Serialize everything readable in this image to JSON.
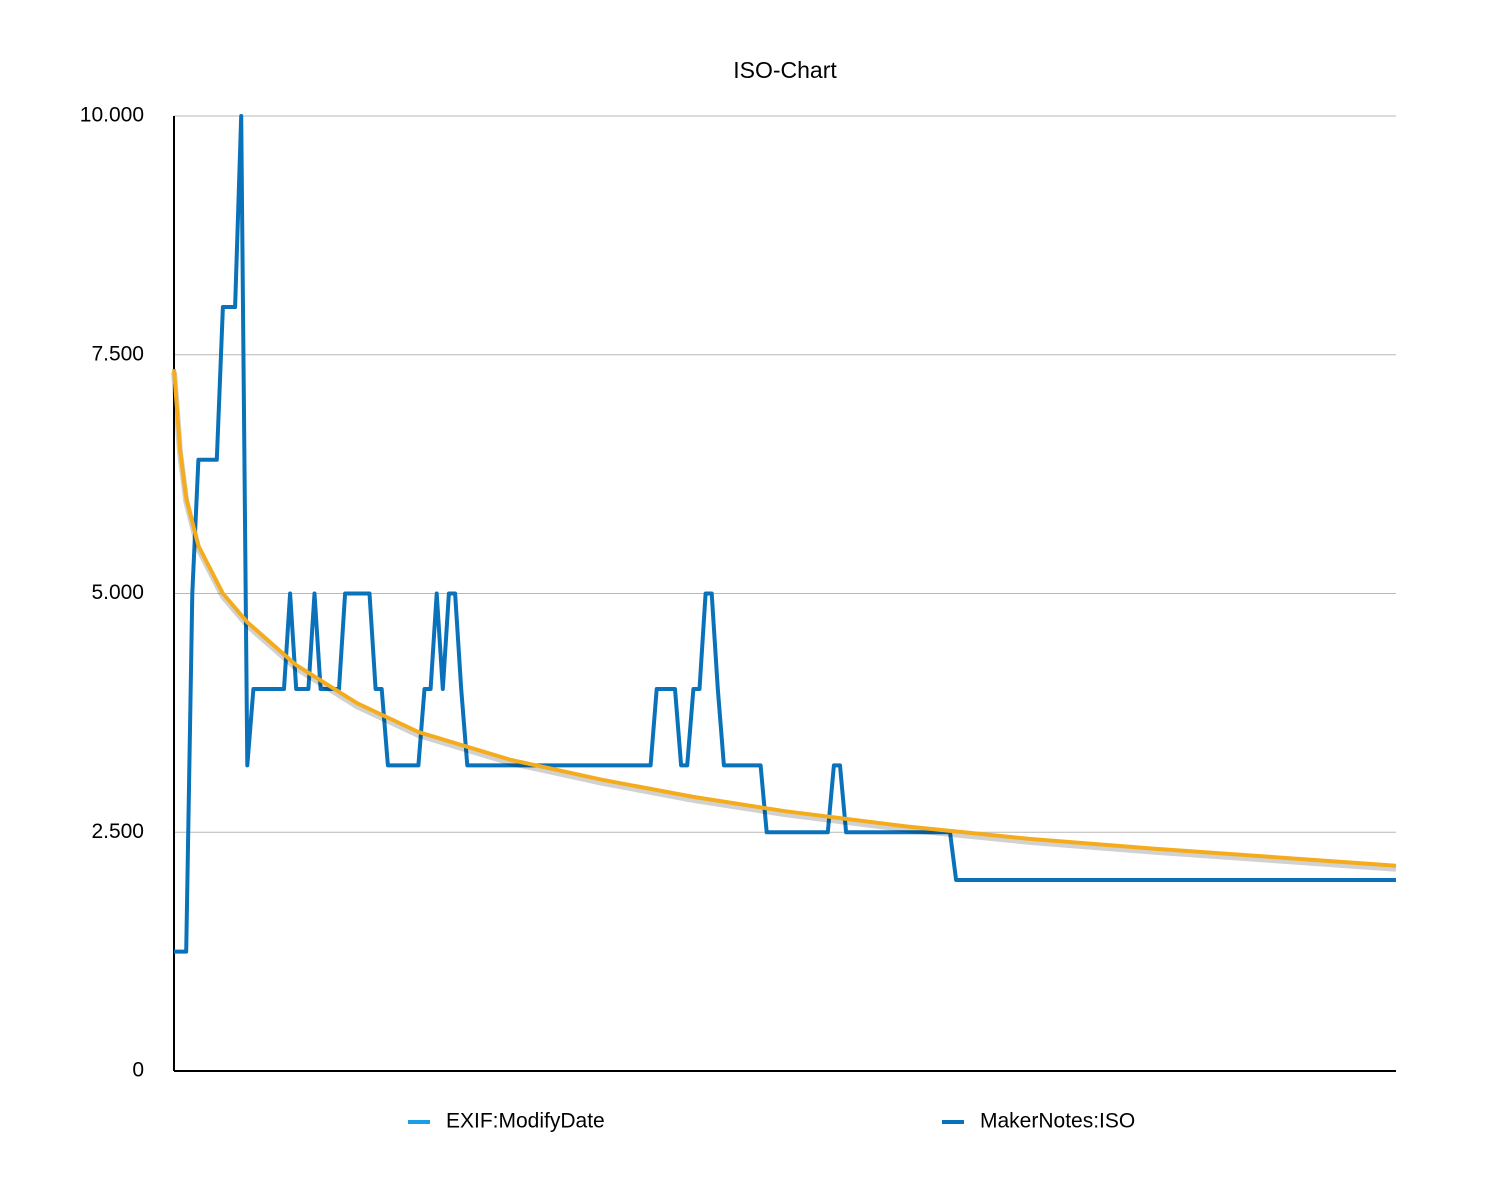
{
  "chart_data": {
    "type": "line",
    "title": "ISO-Chart",
    "xlim": [
      0,
      200
    ],
    "ylim": [
      0,
      10000
    ],
    "yticks": [
      {
        "value": 0,
        "label": "0"
      },
      {
        "value": 2500,
        "label": "2.500"
      },
      {
        "value": 5000,
        "label": "5.000"
      },
      {
        "value": 7500,
        "label": "7.500"
      },
      {
        "value": 10000,
        "label": "10.000"
      }
    ],
    "grid": true,
    "legend": "bottom",
    "legend_entries": [
      {
        "name": "EXIF:ModifyDate",
        "color": "#1a9fe6"
      }
    ],
    "series": [
      {
        "name": "MakerNotes:ISO",
        "color": "#0a72ba",
        "x": [
          0,
          2,
          3,
          4,
          7,
          8,
          10,
          11,
          12,
          13,
          18,
          19,
          20,
          22,
          23,
          24,
          27,
          28,
          32,
          33,
          34,
          35,
          40,
          41,
          42,
          43,
          44,
          45,
          46,
          47,
          48,
          78,
          79,
          82,
          83,
          84,
          85,
          86,
          87,
          88,
          89,
          90,
          96,
          97,
          107,
          108,
          109,
          110,
          127,
          128,
          200
        ],
        "values": [
          1250,
          1250,
          5000,
          6400,
          6400,
          8000,
          8000,
          10000,
          3200,
          4000,
          4000,
          5000,
          4000,
          4000,
          5000,
          4000,
          4000,
          5000,
          5000,
          4000,
          4000,
          3200,
          3200,
          4000,
          4000,
          5000,
          4000,
          5000,
          5000,
          4000,
          3200,
          3200,
          4000,
          4000,
          3200,
          3200,
          4000,
          4000,
          5000,
          5000,
          4000,
          3200,
          3200,
          2500,
          2500,
          3200,
          3200,
          2500,
          2500,
          2000,
          2000
        ]
      }
    ],
    "trendline": {
      "color": "#f5ac1c",
      "x": [
        0,
        1,
        2,
        4,
        8,
        12,
        20,
        30,
        40,
        55,
        70,
        85,
        100,
        120,
        140,
        160,
        180,
        200
      ],
      "values": [
        7350,
        6500,
        6000,
        5500,
        5000,
        4700,
        4250,
        3850,
        3550,
        3260,
        3050,
        2870,
        2720,
        2560,
        2430,
        2330,
        2240,
        2150
      ]
    }
  }
}
